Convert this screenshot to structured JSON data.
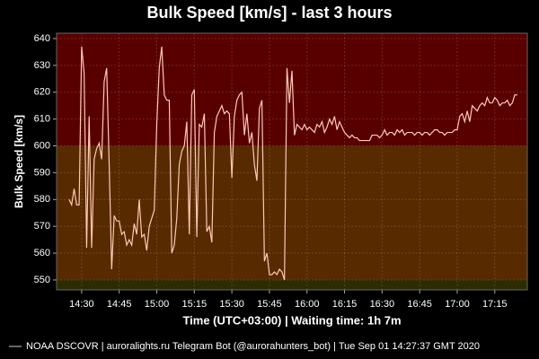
{
  "chart_data": {
    "type": "line",
    "title": "Bulk Speed [km/s] - last 3 hours",
    "x_label": "Time (UTC+03:00) | Waiting time: 1h 7m",
    "y_label": "Bulk Speed [km/s]",
    "footer": "NOAA DSCOVR | auroralights.ru Telegram Bot (@aurorahunters_bot) | Tue Sep 01 14:27:37 GMT 2020",
    "bands": [
      {
        "from": 600,
        "to": 642,
        "color": "#580000"
      },
      {
        "from": 550,
        "to": 600,
        "color": "#582a00"
      },
      {
        "from": 546.3,
        "to": 550,
        "color": "#2c2c00"
      }
    ],
    "grid": true,
    "xlim": [
      "14:20",
      "17:28"
    ],
    "xticks": [
      "14:30",
      "14:45",
      "15:00",
      "15:15",
      "15:30",
      "15:45",
      "16:00",
      "16:15",
      "16:30",
      "16:45",
      "17:00",
      "17:15"
    ],
    "ylim": [
      546.3,
      642
    ],
    "yticks": [
      550,
      560,
      570,
      580,
      590,
      600,
      610,
      620,
      630,
      640
    ],
    "x": [
      "14:25",
      "14:26",
      "14:27",
      "14:28",
      "14:29",
      "14:30",
      "14:31",
      "14:32",
      "14:33",
      "14:34",
      "14:35",
      "14:36",
      "14:37",
      "14:38",
      "14:39",
      "14:40",
      "14:41",
      "14:42",
      "14:43",
      "14:44",
      "14:45",
      "14:46",
      "14:47",
      "14:48",
      "14:49",
      "14:50",
      "14:51",
      "14:52",
      "14:53",
      "14:54",
      "14:55",
      "14:56",
      "14:57",
      "14:58",
      "14:59",
      "15:00",
      "15:01",
      "15:02",
      "15:03",
      "15:04",
      "15:05",
      "15:06",
      "15:07",
      "15:08",
      "15:09",
      "15:10",
      "15:11",
      "15:12",
      "15:13",
      "15:14",
      "15:15",
      "15:16",
      "15:17",
      "15:18",
      "15:19",
      "15:20",
      "15:21",
      "15:22",
      "15:23",
      "15:24",
      "15:25",
      "15:26",
      "15:27",
      "15:28",
      "15:29",
      "15:30",
      "15:31",
      "15:32",
      "15:33",
      "15:34",
      "15:35",
      "15:36",
      "15:37",
      "15:38",
      "15:39",
      "15:40",
      "15:41",
      "15:42",
      "15:43",
      "15:44",
      "15:45",
      "15:46",
      "15:47",
      "15:48",
      "15:49",
      "15:50",
      "15:51",
      "15:52",
      "15:53",
      "15:54",
      "15:55",
      "15:56",
      "15:57",
      "15:58",
      "15:59",
      "16:00",
      "16:01",
      "16:02",
      "16:03",
      "16:04",
      "16:05",
      "16:06",
      "16:07",
      "16:08",
      "16:09",
      "16:10",
      "16:11",
      "16:12",
      "16:13",
      "16:14",
      "16:15",
      "16:16",
      "16:17",
      "16:18",
      "16:19",
      "16:20",
      "16:21",
      "16:22",
      "16:23",
      "16:24",
      "16:25",
      "16:26",
      "16:27",
      "16:28",
      "16:29",
      "16:30",
      "16:31",
      "16:32",
      "16:33",
      "16:34",
      "16:35",
      "16:36",
      "16:37",
      "16:38",
      "16:39",
      "16:40",
      "16:41",
      "16:42",
      "16:43",
      "16:44",
      "16:45",
      "16:46",
      "16:47",
      "16:48",
      "16:49",
      "16:50",
      "16:51",
      "16:52",
      "16:53",
      "16:54",
      "16:55",
      "16:56",
      "16:57",
      "16:58",
      "16:59",
      "17:00",
      "17:01",
      "17:02",
      "17:03",
      "17:04",
      "17:05",
      "17:06",
      "17:07",
      "17:08",
      "17:09",
      "17:10",
      "17:11",
      "17:12",
      "17:13",
      "17:14",
      "17:15",
      "17:16",
      "17:17",
      "17:18",
      "17:19",
      "17:20",
      "17:21",
      "17:22",
      "17:23",
      "17:24"
    ],
    "series": [
      {
        "name": "NOAA DSCOVR",
        "color": "#ffc8b4",
        "values": [
          580,
          578,
          584,
          578,
          578,
          637,
          627,
          562,
          611,
          562,
          595,
          599,
          601,
          595,
          624,
          629,
          593,
          554,
          574,
          572,
          572,
          567,
          568,
          563,
          565,
          563,
          571,
          567,
          580,
          566,
          567,
          561,
          570,
          573,
          576,
          608,
          629,
          637,
          619,
          617,
          617,
          560,
          563,
          573,
          593,
          598,
          600,
          609,
          567,
          619,
          621,
          566,
          608,
          607,
          612,
          568,
          570,
          564,
          605,
          611,
          613,
          615,
          612,
          613,
          612,
          588,
          611,
          617,
          619,
          620,
          604,
          612,
          601,
          605,
          593,
          587,
          614,
          617,
          557,
          560,
          552,
          552,
          553,
          552,
          554,
          553,
          550,
          629,
          616,
          628,
          604,
          608,
          607,
          606,
          608,
          606,
          607,
          606,
          605,
          608,
          607,
          609,
          605,
          607,
          610,
          608,
          611,
          606,
          609,
          607,
          605,
          604,
          603,
          604,
          603,
          603,
          602,
          602,
          602,
          602,
          602,
          604,
          604,
          604,
          603,
          604,
          606,
          604,
          605,
          605,
          604,
          606,
          605,
          606,
          604,
          605,
          605,
          605,
          604,
          605,
          605,
          604,
          605,
          605,
          604,
          605,
          606,
          606,
          605,
          605,
          604,
          605,
          605,
          605,
          606,
          606,
          611,
          612,
          609,
          613,
          609,
          615,
          614,
          613,
          615,
          616,
          615,
          618,
          616,
          616,
          618,
          617,
          615,
          616,
          616,
          617,
          615,
          616,
          619,
          619
        ]
      }
    ]
  }
}
